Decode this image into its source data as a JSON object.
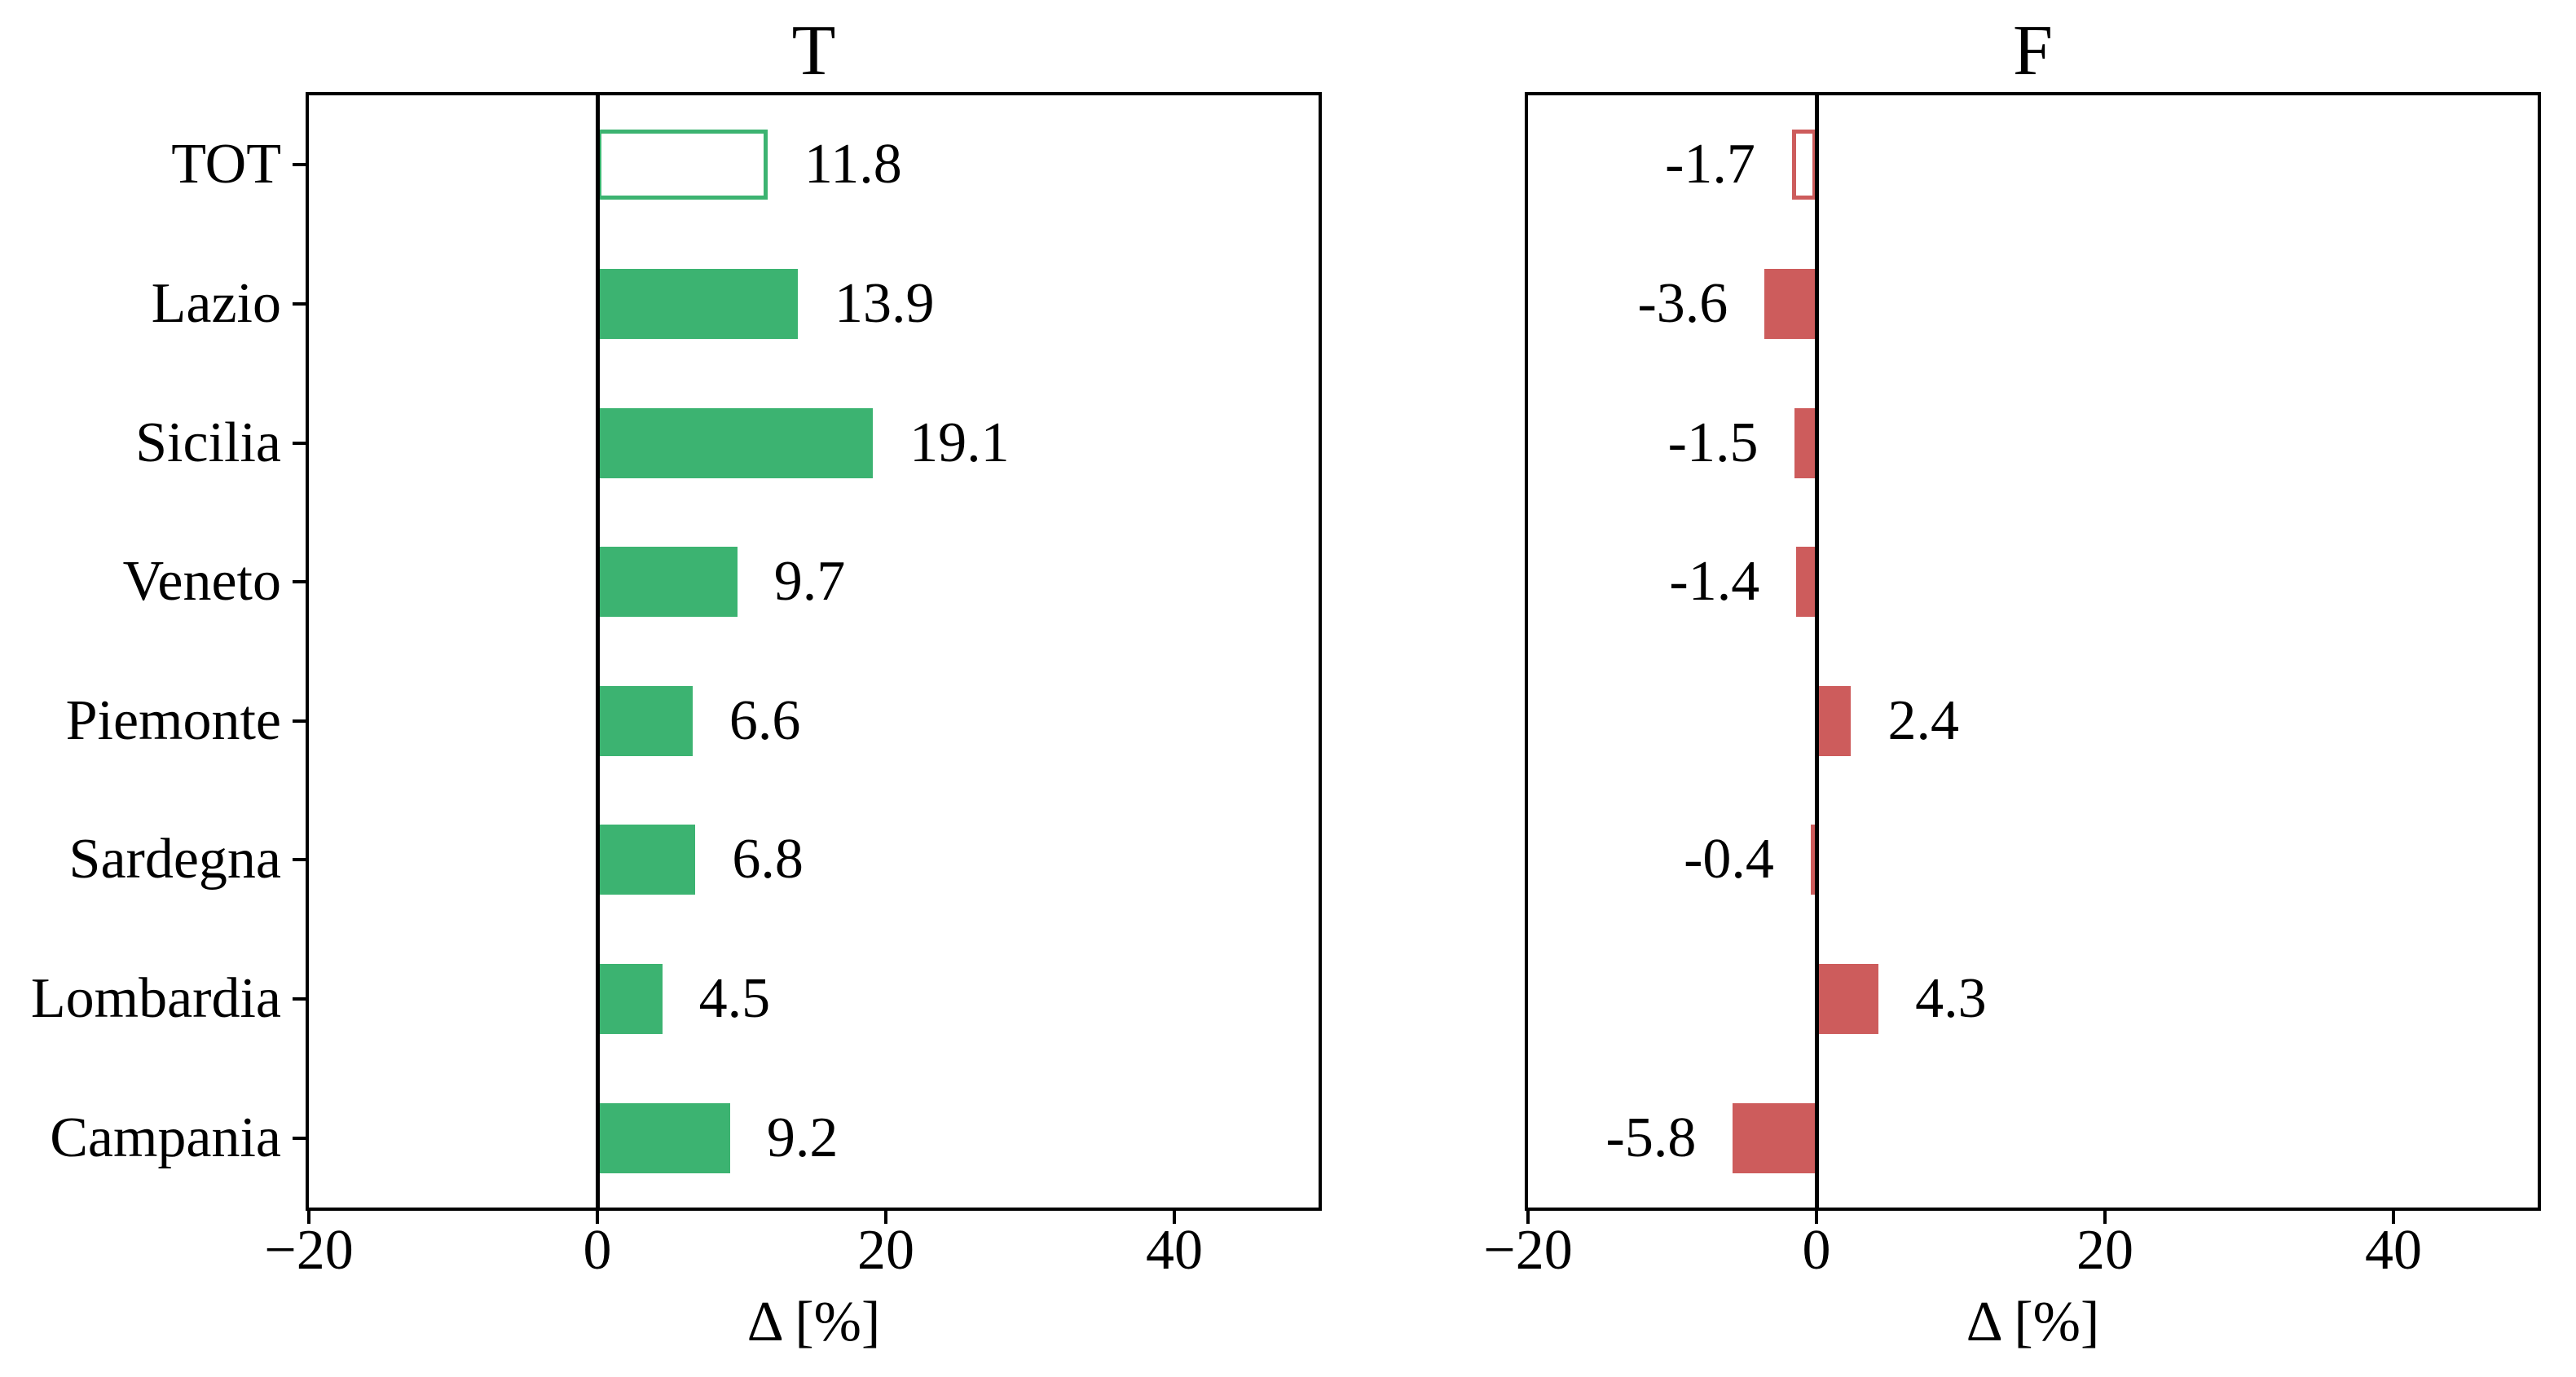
{
  "chart_data": [
    {
      "type": "bar",
      "orientation": "horizontal",
      "title": "T",
      "xlabel": "Δ [%]",
      "categories": [
        "TOT",
        "Lazio",
        "Sicilia",
        "Veneto",
        "Piemonte",
        "Sardegna",
        "Lombardia",
        "Campania"
      ],
      "values": [
        11.8,
        13.9,
        19.1,
        9.7,
        6.6,
        6.8,
        4.5,
        9.2
      ],
      "bar_labels": [
        "11.8",
        "13.9",
        "19.1",
        "9.7",
        "6.6",
        "6.8",
        "4.5",
        "9.2"
      ],
      "xlim": [
        -20,
        50
      ],
      "xticks": [
        -20,
        0,
        20,
        40
      ],
      "xtick_labels": [
        "−20",
        "0",
        "20",
        "40"
      ],
      "bar_color": "#3cb371",
      "outlined_category": "TOT",
      "zero_line": true,
      "grid": false,
      "show_category_labels": true
    },
    {
      "type": "bar",
      "orientation": "horizontal",
      "title": "F",
      "xlabel": "Δ [%]",
      "categories": [
        "TOT",
        "Lazio",
        "Sicilia",
        "Veneto",
        "Piemonte",
        "Sardegna",
        "Lombardia",
        "Campania"
      ],
      "values": [
        -1.7,
        -3.6,
        -1.5,
        -1.4,
        2.4,
        -0.4,
        4.3,
        -5.8
      ],
      "bar_labels": [
        "-1.7",
        "-3.6",
        "-1.5",
        "-1.4",
        "2.4",
        "-0.4",
        "4.3",
        "-5.8"
      ],
      "xlim": [
        -20,
        50
      ],
      "xticks": [
        -20,
        0,
        20,
        40
      ],
      "xtick_labels": [
        "−20",
        "0",
        "20",
        "40"
      ],
      "bar_color": "#cd5c5c",
      "outlined_category": "TOT",
      "zero_line": true,
      "grid": false,
      "show_category_labels": false
    }
  ],
  "colors": {
    "positive_green": "#3cb371",
    "negative_red": "#cd5c5c",
    "axis_black": "#000000",
    "background": "#ffffff"
  }
}
